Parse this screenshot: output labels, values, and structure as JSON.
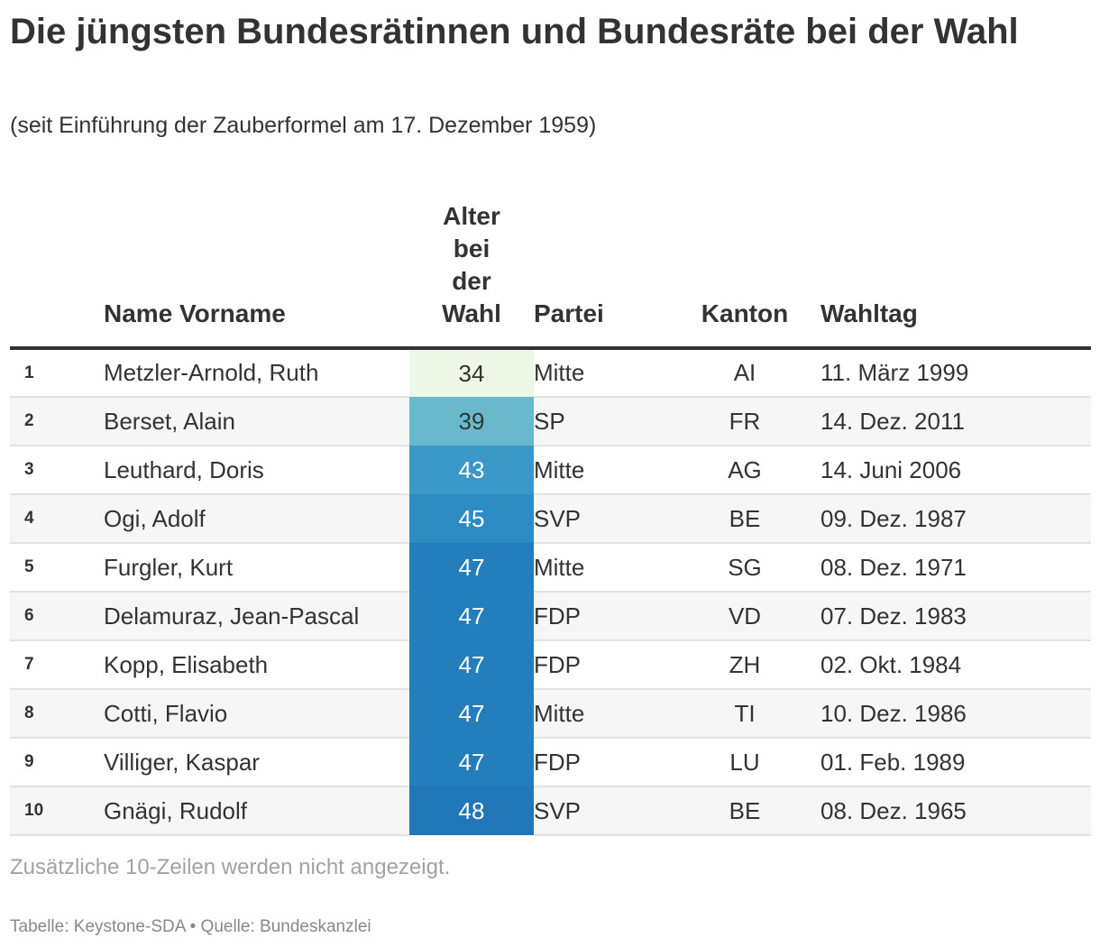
{
  "title": "Die jüngsten Bundesrätinnen und Bundesräte bei der Wahl",
  "subtitle": "(seit Einführung der Zauberformel am 17. Dezember 1959)",
  "note": "Zusätzliche 10-Zeilen werden nicht angezeigt.",
  "footer": "Tabelle: Keystone-SDA • Quelle: Bundeskanzlei",
  "colors": {
    "title": "#333333",
    "header_rule": "#333333",
    "row_alt": "#f6f6f6",
    "note": "#a2a2a2",
    "heat_scale": [
      "#eef7e5",
      "#94d4c1",
      "#5cb3ce",
      "#3f9ccb",
      "#2b8bc2",
      "#2177b8"
    ]
  },
  "chart_data": {
    "type": "table",
    "columns": [
      "",
      "Name Vorname",
      "Alter bei der Wahl",
      "Partei",
      "Kanton",
      "Wahltag"
    ],
    "rows": [
      {
        "rank": "1",
        "name": "Metzler-Arnold, Ruth",
        "age": 34,
        "party": "Mitte",
        "canton": "AI",
        "date": "11. März 1999"
      },
      {
        "rank": "2",
        "name": "Berset, Alain",
        "age": 39,
        "party": "SP",
        "canton": "FR",
        "date": "14. Dez. 2011"
      },
      {
        "rank": "3",
        "name": "Leuthard, Doris",
        "age": 43,
        "party": "Mitte",
        "canton": "AG",
        "date": "14. Juni 2006"
      },
      {
        "rank": "4",
        "name": "Ogi, Adolf",
        "age": 45,
        "party": "SVP",
        "canton": "BE",
        "date": "09. Dez. 1987"
      },
      {
        "rank": "5",
        "name": "Furgler, Kurt",
        "age": 47,
        "party": "Mitte",
        "canton": "SG",
        "date": "08. Dez. 1971"
      },
      {
        "rank": "6",
        "name": "Delamuraz, Jean-Pascal",
        "age": 47,
        "party": "FDP",
        "canton": "VD",
        "date": "07. Dez. 1983"
      },
      {
        "rank": "7",
        "name": "Kopp, Elisabeth",
        "age": 47,
        "party": "FDP",
        "canton": "ZH",
        "date": "02. Okt. 1984"
      },
      {
        "rank": "8",
        "name": "Cotti, Flavio",
        "age": 47,
        "party": "Mitte",
        "canton": "TI",
        "date": "10. Dez. 1986"
      },
      {
        "rank": "9",
        "name": "Villiger, Kaspar",
        "age": 47,
        "party": "FDP",
        "canton": "LU",
        "date": "01. Feb. 1989"
      },
      {
        "rank": "10",
        "name": "Gnägi, Rudolf",
        "age": 48,
        "party": "SVP",
        "canton": "BE",
        "date": "08. Dez. 1965"
      }
    ]
  }
}
